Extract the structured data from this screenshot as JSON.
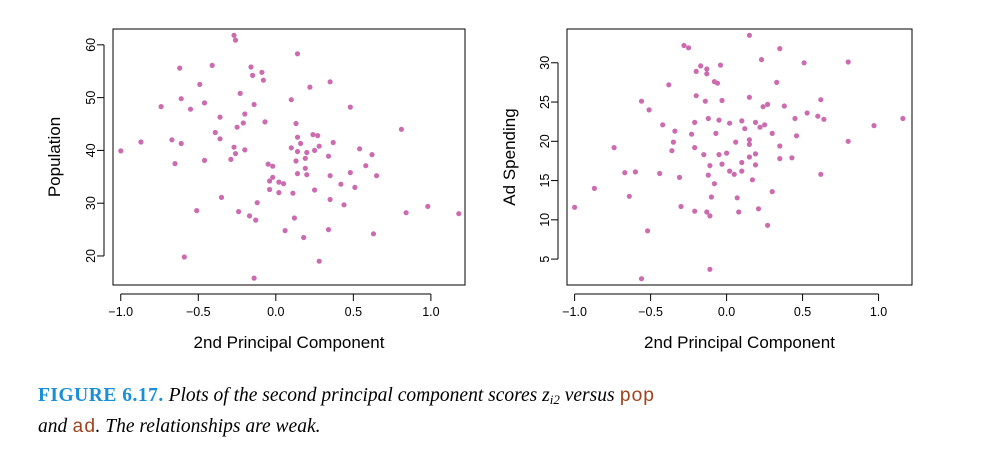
{
  "colors": {
    "point": "#cc6bb0",
    "axis": "#000000",
    "caption_label": "#1a8fd6",
    "code": "#a0431e"
  },
  "chart_data": [
    {
      "type": "scatter",
      "xlabel": "2nd Principal Component",
      "ylabel": "Population",
      "xlim": [
        -1.05,
        1.22
      ],
      "ylim": [
        14.5,
        63
      ],
      "xticks": [
        -1.0,
        -0.5,
        0.0,
        0.5,
        1.0
      ],
      "xtick_labels": [
        "−1.0",
        "−0.5",
        "0.0",
        "0.5",
        "1.0"
      ],
      "yticks": [
        20,
        30,
        40,
        50,
        60
      ],
      "ytick_labels": [
        "20",
        "30",
        "40",
        "50",
        "60"
      ],
      "grid": false,
      "points": [
        [
          -0.27,
          61.8
        ],
        [
          -0.26,
          60.9
        ],
        [
          0.14,
          58.3
        ],
        [
          -0.41,
          56.1
        ],
        [
          -0.16,
          55.8
        ],
        [
          -0.62,
          55.6
        ],
        [
          -0.09,
          54.8
        ],
        [
          -0.15,
          54.2
        ],
        [
          -0.08,
          53.3
        ],
        [
          0.35,
          53.0
        ],
        [
          -0.49,
          52.5
        ],
        [
          0.22,
          52.0
        ],
        [
          -0.23,
          50.8
        ],
        [
          -0.61,
          49.8
        ],
        [
          0.1,
          49.6
        ],
        [
          -0.46,
          49.0
        ],
        [
          -0.14,
          48.7
        ],
        [
          -0.74,
          48.3
        ],
        [
          0.48,
          48.2
        ],
        [
          -0.55,
          47.8
        ],
        [
          -0.2,
          46.9
        ],
        [
          -0.36,
          46.3
        ],
        [
          -0.07,
          45.4
        ],
        [
          -0.21,
          45.2
        ],
        [
          0.13,
          45.1
        ],
        [
          -0.25,
          44.4
        ],
        [
          0.81,
          44.0
        ],
        [
          -0.39,
          43.4
        ],
        [
          0.24,
          43.0
        ],
        [
          0.14,
          42.5
        ],
        [
          0.27,
          42.8
        ],
        [
          -0.36,
          42.2
        ],
        [
          0.37,
          41.5
        ],
        [
          -0.67,
          42.0
        ],
        [
          -0.87,
          41.6
        ],
        [
          -0.61,
          41.3
        ],
        [
          -0.27,
          40.6
        ],
        [
          -0.26,
          39.4
        ],
        [
          0.16,
          41.3
        ],
        [
          0.28,
          40.8
        ],
        [
          -0.2,
          40.1
        ],
        [
          0.14,
          39.8
        ],
        [
          0.1,
          40.5
        ],
        [
          0.25,
          40.0
        ],
        [
          0.54,
          40.3
        ],
        [
          -1.0,
          39.9
        ],
        [
          0.2,
          39.6
        ],
        [
          0.34,
          38.9
        ],
        [
          0.62,
          39.2
        ],
        [
          0.19,
          38.5
        ],
        [
          -0.29,
          38.3
        ],
        [
          0.13,
          38.0
        ],
        [
          -0.46,
          38.1
        ],
        [
          -0.65,
          37.5
        ],
        [
          -0.05,
          37.4
        ],
        [
          -0.02,
          37.0
        ],
        [
          0.58,
          37.1
        ],
        [
          0.19,
          36.6
        ],
        [
          0.48,
          35.8
        ],
        [
          0.14,
          35.6
        ],
        [
          0.2,
          35.4
        ],
        [
          0.35,
          35.2
        ],
        [
          -0.02,
          34.9
        ],
        [
          0.65,
          35.2
        ],
        [
          -0.04,
          34.2
        ],
        [
          0.02,
          34.0
        ],
        [
          0.05,
          33.7
        ],
        [
          -0.04,
          32.6
        ],
        [
          0.42,
          33.6
        ],
        [
          0.51,
          33.0
        ],
        [
          0.25,
          32.5
        ],
        [
          0.11,
          31.9
        ],
        [
          0.02,
          32.0
        ],
        [
          -0.35,
          31.1
        ],
        [
          -0.12,
          30.1
        ],
        [
          0.35,
          30.7
        ],
        [
          0.44,
          29.7
        ],
        [
          -0.51,
          28.6
        ],
        [
          -0.24,
          28.4
        ],
        [
          -0.17,
          27.6
        ],
        [
          0.12,
          27.2
        ],
        [
          0.84,
          28.2
        ],
        [
          0.98,
          29.4
        ],
        [
          1.18,
          28.0
        ],
        [
          -0.13,
          26.8
        ],
        [
          0.34,
          25.0
        ],
        [
          0.06,
          24.8
        ],
        [
          0.63,
          24.2
        ],
        [
          0.18,
          23.5
        ],
        [
          -0.59,
          19.8
        ],
        [
          0.28,
          19.0
        ],
        [
          -0.14,
          15.8
        ]
      ]
    },
    {
      "type": "scatter",
      "xlabel": "2nd Principal Component",
      "ylabel": "Ad Spending",
      "xlim": [
        -1.05,
        1.22
      ],
      "ylim": [
        1.7,
        34.3
      ],
      "xticks": [
        -1.0,
        -0.5,
        0.0,
        0.5,
        1.0
      ],
      "xtick_labels": [
        "−1.0",
        "−0.5",
        "0.0",
        "0.5",
        "1.0"
      ],
      "yticks": [
        5,
        10,
        15,
        20,
        25,
        30
      ],
      "ytick_labels": [
        "5",
        "10",
        "15",
        "20",
        "25",
        "30"
      ],
      "grid": false,
      "points": [
        [
          0.15,
          33.5
        ],
        [
          -0.28,
          32.2
        ],
        [
          -0.25,
          31.9
        ],
        [
          0.35,
          31.8
        ],
        [
          0.51,
          30.0
        ],
        [
          0.8,
          30.1
        ],
        [
          -0.04,
          29.7
        ],
        [
          -0.17,
          29.6
        ],
        [
          -0.2,
          28.9
        ],
        [
          -0.13,
          29.2
        ],
        [
          -0.13,
          28.6
        ],
        [
          0.23,
          30.4
        ],
        [
          -0.08,
          27.6
        ],
        [
          -0.06,
          27.4
        ],
        [
          0.33,
          27.5
        ],
        [
          -0.38,
          27.2
        ],
        [
          -0.2,
          25.8
        ],
        [
          -0.14,
          25.1
        ],
        [
          -0.03,
          25.2
        ],
        [
          0.15,
          25.6
        ],
        [
          -0.56,
          25.1
        ],
        [
          0.62,
          25.3
        ],
        [
          0.27,
          24.7
        ],
        [
          0.38,
          24.5
        ],
        [
          -0.51,
          24.0
        ],
        [
          0.24,
          24.4
        ],
        [
          0.53,
          23.6
        ],
        [
          0.45,
          22.9
        ],
        [
          0.6,
          23.2
        ],
        [
          -0.12,
          22.9
        ],
        [
          -0.05,
          22.7
        ],
        [
          0.1,
          22.6
        ],
        [
          0.19,
          22.4
        ],
        [
          1.16,
          22.9
        ],
        [
          -0.42,
          22.1
        ],
        [
          0.02,
          22.3
        ],
        [
          -0.21,
          22.4
        ],
        [
          0.25,
          22.1
        ],
        [
          0.97,
          22.0
        ],
        [
          0.64,
          22.8
        ],
        [
          0.12,
          21.6
        ],
        [
          0.3,
          21.0
        ],
        [
          0.46,
          20.7
        ],
        [
          -0.34,
          21.3
        ],
        [
          -0.23,
          20.9
        ],
        [
          -0.07,
          21.0
        ],
        [
          0.22,
          21.8
        ],
        [
          0.15,
          20.2
        ],
        [
          0.06,
          19.9
        ],
        [
          0.8,
          20.0
        ],
        [
          -0.35,
          19.9
        ],
        [
          0.15,
          19.6
        ],
        [
          -0.21,
          19.2
        ],
        [
          0.35,
          19.4
        ],
        [
          -0.74,
          19.2
        ],
        [
          -0.36,
          18.8
        ],
        [
          0.0,
          18.5
        ],
        [
          -0.05,
          18.3
        ],
        [
          0.19,
          18.4
        ],
        [
          -0.15,
          18.3
        ],
        [
          0.15,
          18.0
        ],
        [
          0.35,
          17.8
        ],
        [
          0.43,
          17.9
        ],
        [
          0.1,
          17.3
        ],
        [
          -0.03,
          17.1
        ],
        [
          0.19,
          17.0
        ],
        [
          -0.11,
          16.9
        ],
        [
          0.02,
          16.2
        ],
        [
          0.1,
          16.2
        ],
        [
          -0.6,
          16.1
        ],
        [
          -0.67,
          16.0
        ],
        [
          -0.44,
          15.9
        ],
        [
          0.05,
          15.8
        ],
        [
          -0.12,
          15.7
        ],
        [
          -0.31,
          15.4
        ],
        [
          0.17,
          15.1
        ],
        [
          0.62,
          15.8
        ],
        [
          -0.08,
          14.6
        ],
        [
          -0.87,
          14.0
        ],
        [
          0.3,
          13.6
        ],
        [
          -0.64,
          13.0
        ],
        [
          -0.1,
          12.9
        ],
        [
          0.07,
          12.8
        ],
        [
          -0.3,
          11.7
        ],
        [
          -1.0,
          11.6
        ],
        [
          -0.21,
          11.1
        ],
        [
          0.21,
          11.4
        ],
        [
          -0.13,
          11.0
        ],
        [
          0.08,
          11.0
        ],
        [
          -0.11,
          10.5
        ],
        [
          0.27,
          9.3
        ],
        [
          -0.52,
          8.6
        ],
        [
          -0.11,
          3.7
        ],
        [
          -0.56,
          2.5
        ]
      ]
    }
  ],
  "caption": {
    "label": "FIGURE 6.17.",
    "text_1": "Plots of the second principal component scores ",
    "var": "z",
    "var_sub": "i2",
    "text_2": " versus ",
    "code_1": "pop",
    "text_3": "and ",
    "code_2": "ad",
    "text_4": ". The relationships are weak."
  }
}
